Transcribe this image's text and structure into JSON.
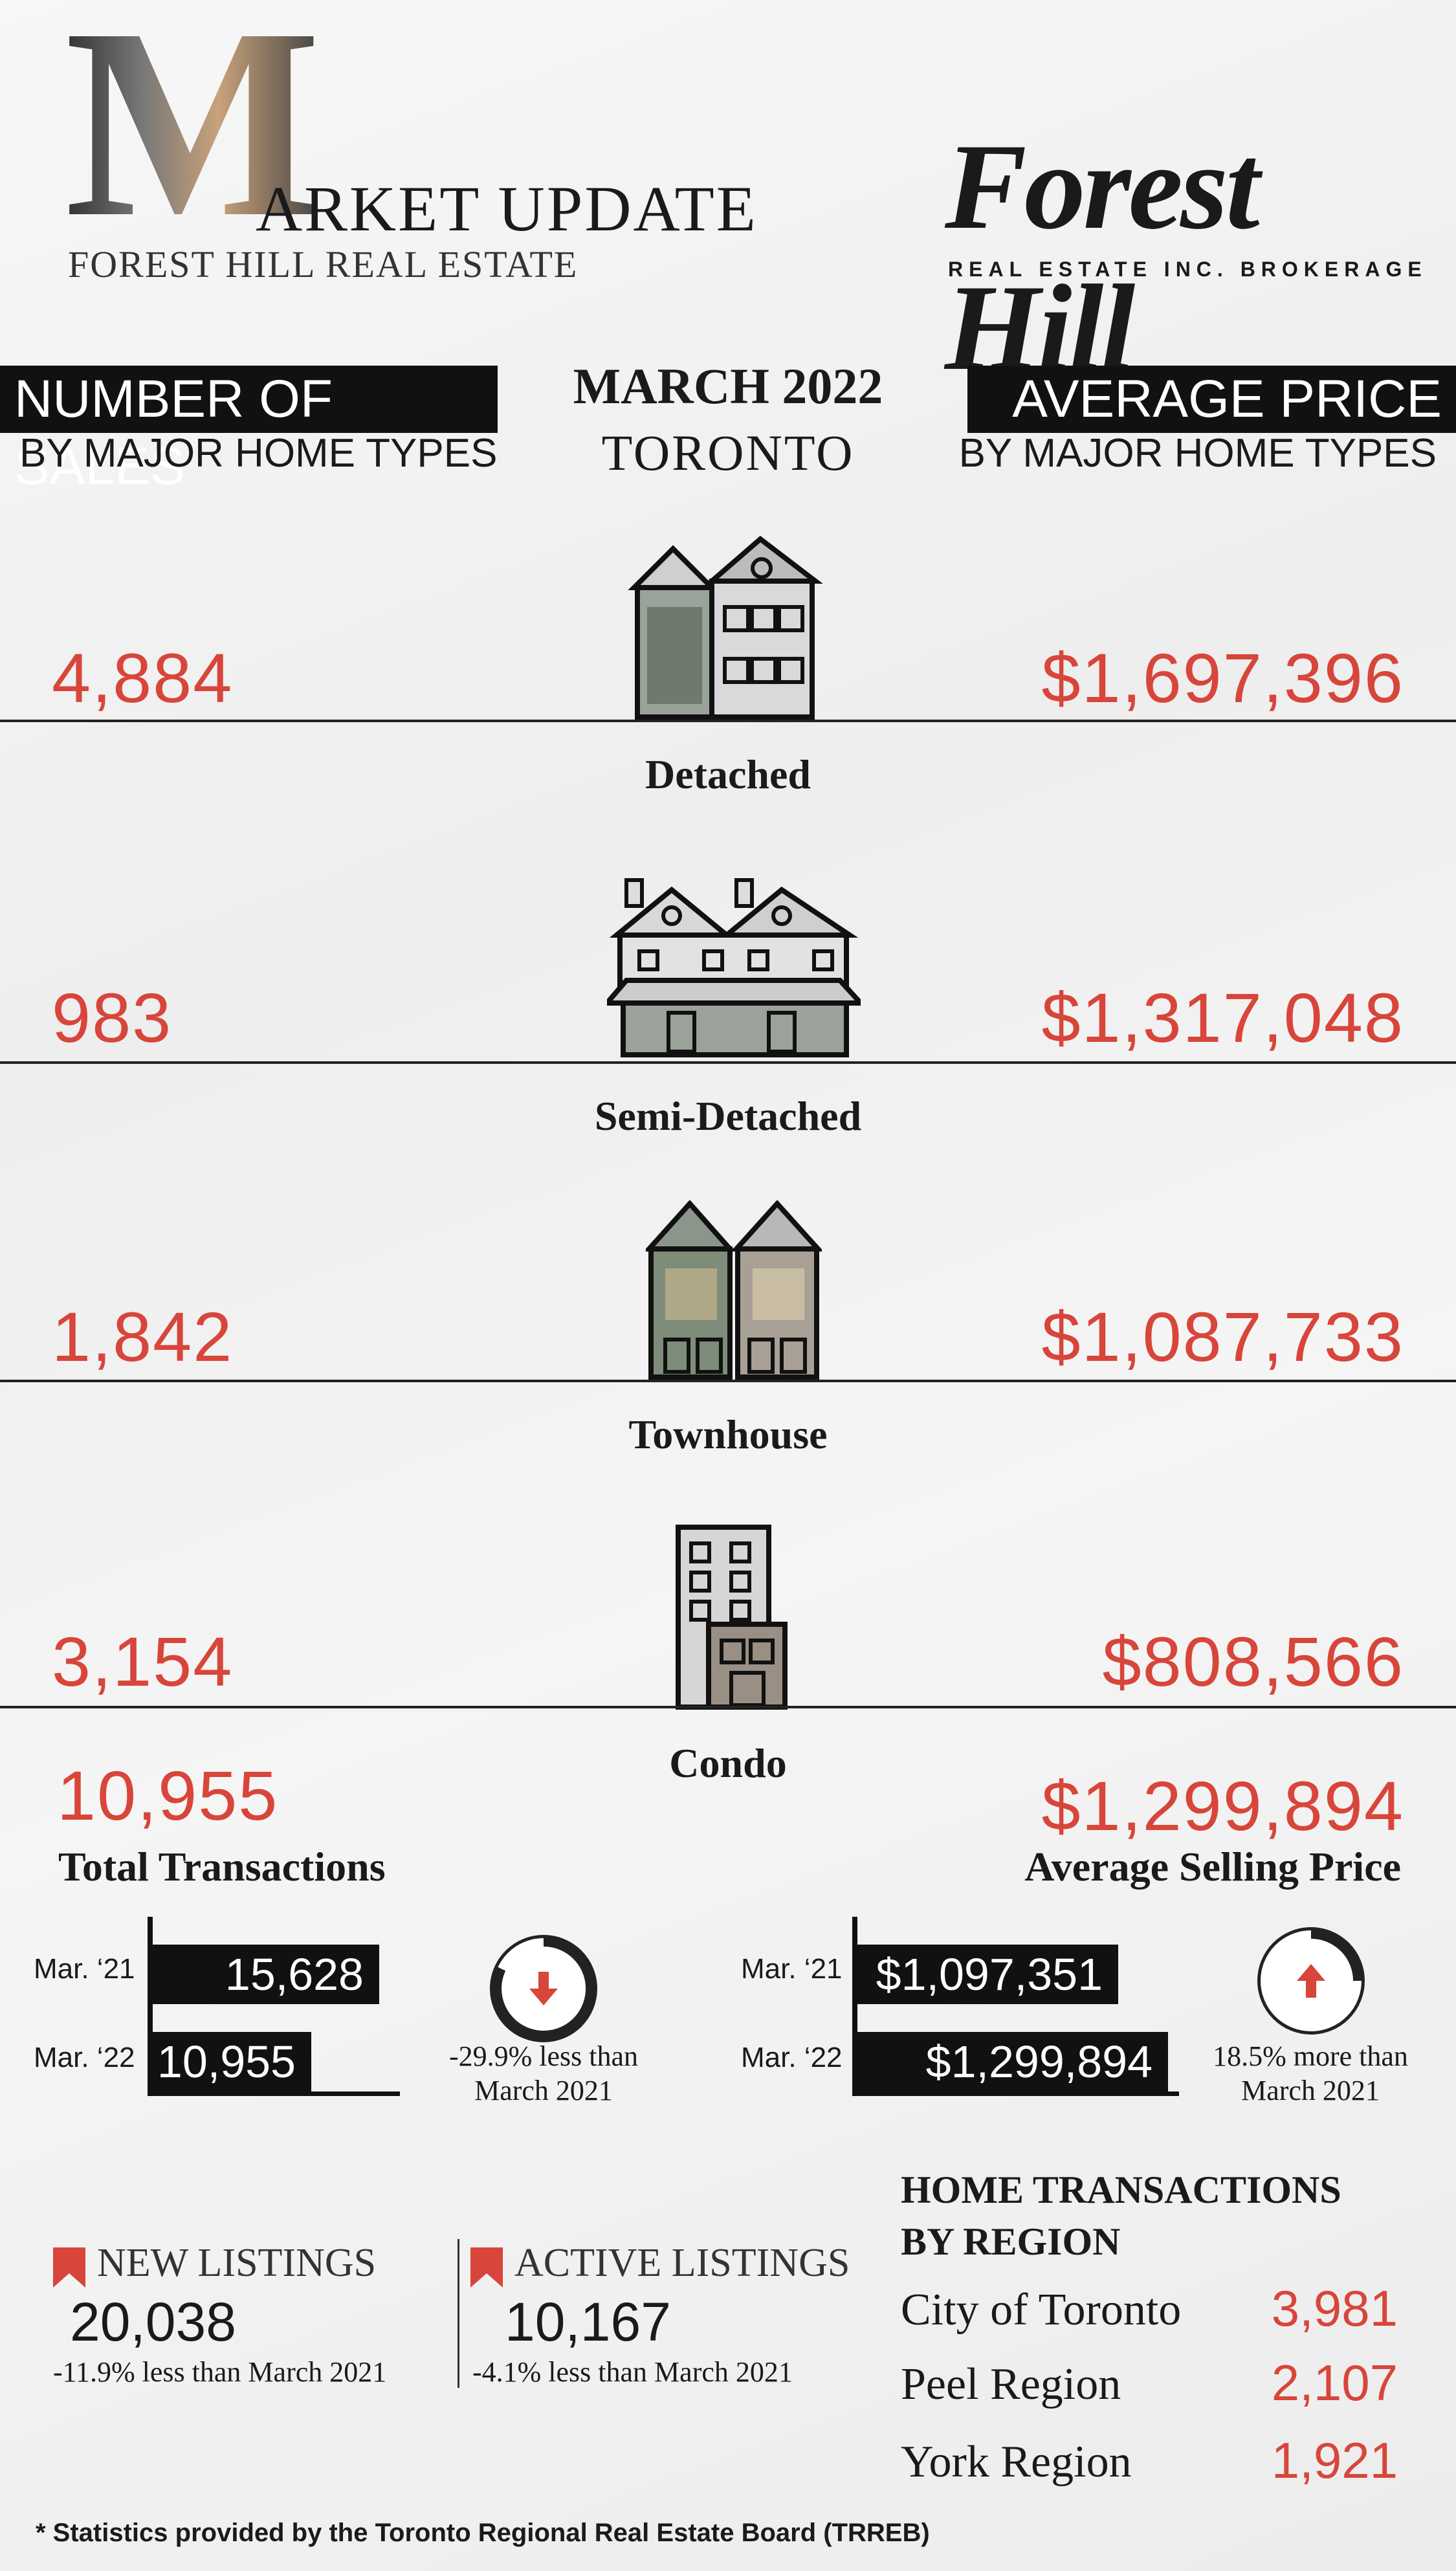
{
  "header": {
    "logo_letter": "M",
    "title_rest": "ARKET UPDATE",
    "subtitle": "FOREST HILL REAL ESTATE",
    "brand_script": "Forest Hill",
    "brand_sub": "REAL ESTATE INC. BROKERAGE"
  },
  "columns": {
    "left_banner": "NUMBER OF SALES",
    "left_sub": "BY MAJOR HOME TYPES",
    "center_month": "MARCH 2022",
    "center_city": "TORONTO",
    "right_banner": "AVERAGE PRICE",
    "right_sub": "BY MAJOR HOME TYPES"
  },
  "home_types": [
    {
      "label": "Detached",
      "sales": "4,884",
      "price": "$1,697,396",
      "icon": "detached-house-icon"
    },
    {
      "label": "Semi-Detached",
      "sales": "983",
      "price": "$1,317,048",
      "icon": "semi-detached-house-icon"
    },
    {
      "label": "Townhouse",
      "sales": "1,842",
      "price": "$1,087,733",
      "icon": "townhouse-icon"
    },
    {
      "label": "Condo",
      "sales": "3,154",
      "price": "$808,566",
      "icon": "condo-building-icon"
    }
  ],
  "totals": {
    "transactions_value": "10,955",
    "transactions_label": "Total Transactions",
    "avg_price_value": "$1,299,894",
    "avg_price_label": "Average Selling Price"
  },
  "sales_compare": {
    "year1_label": "Mar. ‘21",
    "year1_value": "15,628",
    "year1_share": 1.0,
    "year2_label": "Mar. ‘22",
    "year2_value": "10,955",
    "year2_share": 0.7,
    "change_text_1": "-29.9% less than",
    "change_text_2": "March 2021",
    "direction": "down"
  },
  "price_compare": {
    "year1_label": "Mar. ‘21",
    "year1_value": "$1,097,351",
    "year1_share": 0.84,
    "year2_label": "Mar. ‘22",
    "year2_value": "$1,299,894",
    "year2_share": 1.0,
    "change_text_1": "18.5% more than",
    "change_text_2": "March 2021",
    "direction": "up"
  },
  "listings": {
    "new_title": "NEW LISTINGS",
    "new_value": "20,038",
    "new_change": "-11.9% less than March 2021",
    "active_title": "ACTIVE LISTINGS",
    "active_value": "10,167",
    "active_change": "-4.1% less than March 2021"
  },
  "regions": {
    "title_1": "HOME TRANSACTIONS",
    "title_2": "BY REGION",
    "items": [
      {
        "name": "City of Toronto",
        "value": "3,981"
      },
      {
        "name": "Peel Region",
        "value": "2,107"
      },
      {
        "name": "York Region",
        "value": "1,921"
      }
    ]
  },
  "footer": "* Statistics provided by the Toronto Regional Real Estate Board (TRREB)",
  "colors": {
    "accent": "#d8453a",
    "dark": "#111111"
  }
}
